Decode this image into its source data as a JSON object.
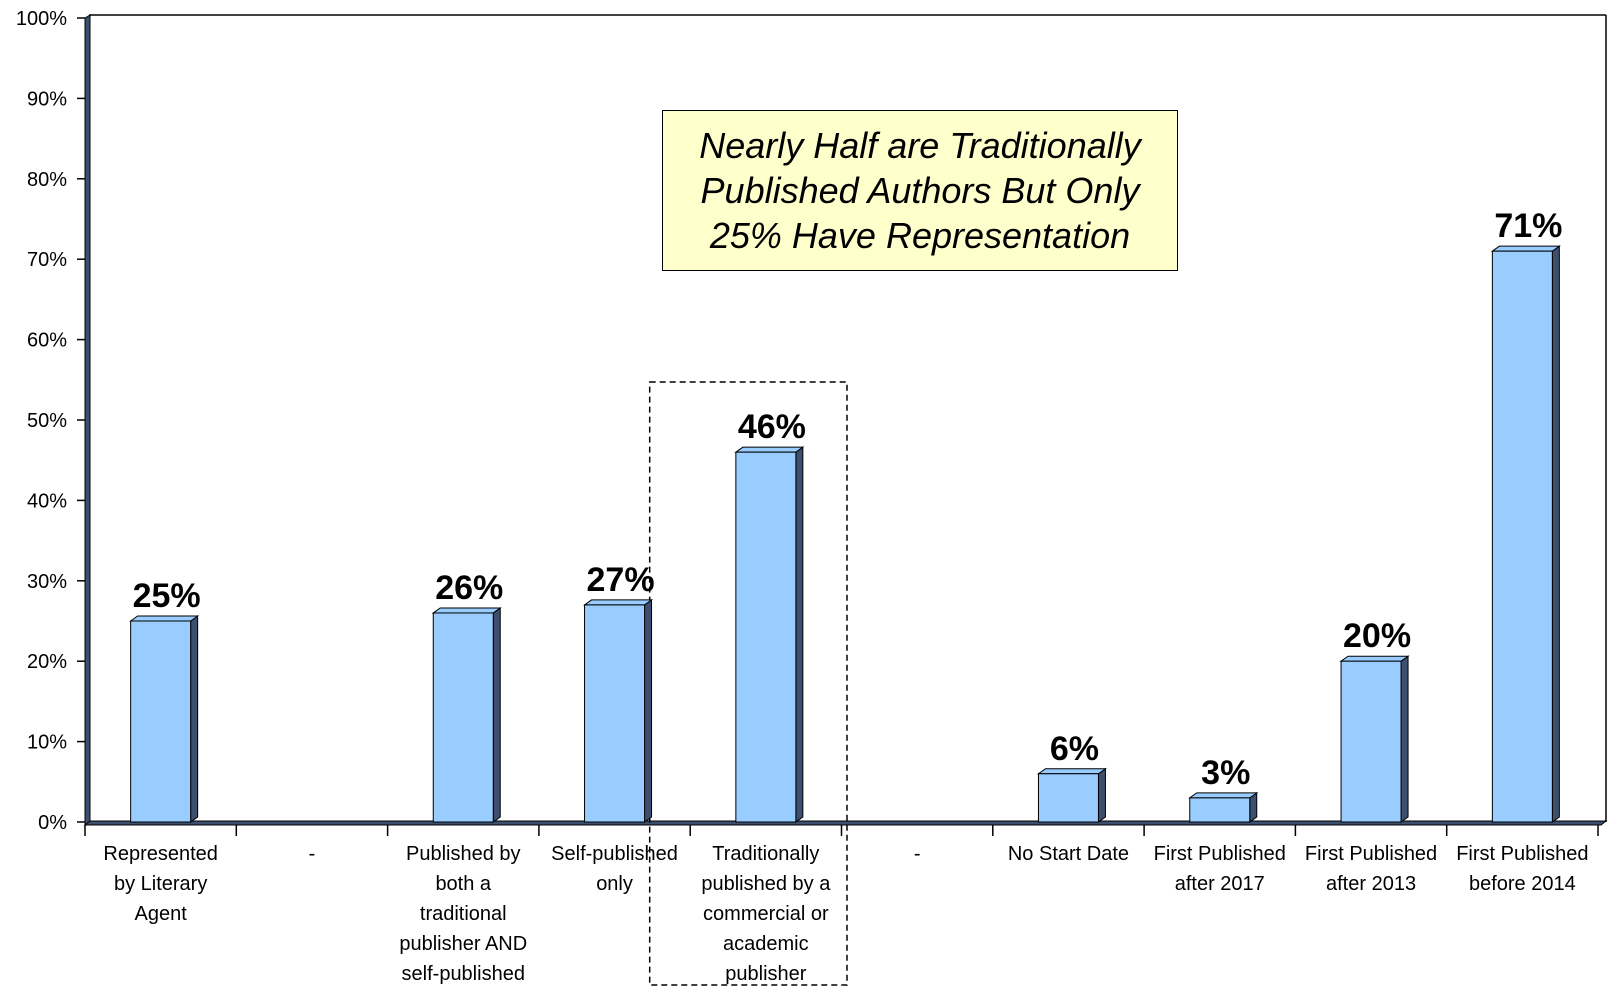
{
  "chart_data": {
    "type": "bar",
    "categories": [
      [
        "Represented",
        "by Literary",
        "Agent"
      ],
      [
        "-"
      ],
      [
        "Published by",
        "both a",
        "traditional",
        "publisher AND",
        "self-published"
      ],
      [
        "Self-published",
        "only"
      ],
      [
        "Traditionally",
        "published by a",
        "commercial or",
        "academic",
        "publisher"
      ],
      [
        "-"
      ],
      [
        "No Start Date"
      ],
      [
        "First Published",
        "after 2017"
      ],
      [
        "First Published",
        "after 2013"
      ],
      [
        "First Published",
        "before 2014"
      ]
    ],
    "values": [
      25,
      null,
      26,
      27,
      46,
      null,
      6,
      3,
      20,
      71
    ],
    "value_labels": [
      "25%",
      "",
      "26%",
      "27%",
      "46%",
      "",
      "6%",
      "3%",
      "20%",
      "71%"
    ],
    "yticks": [
      "0%",
      "10%",
      "20%",
      "30%",
      "40%",
      "50%",
      "60%",
      "70%",
      "80%",
      "90%",
      "100%"
    ],
    "ylim": [
      0,
      100
    ],
    "highlighted_category": 4,
    "bar_color": "#99ccff",
    "bar_side_color": "#3d4f6e",
    "grid": false,
    "legend": "none"
  },
  "annotation": {
    "lines": [
      "Nearly Half are Traditionally",
      "Published Authors But Only",
      "25% Have Representation"
    ],
    "background": "#ffffcc"
  }
}
